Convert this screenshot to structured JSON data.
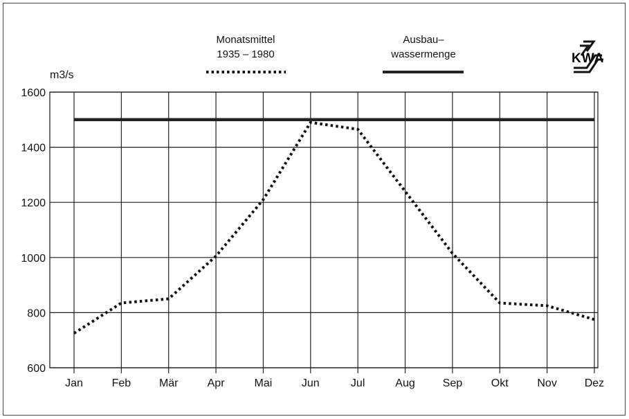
{
  "chart_data": {
    "type": "line",
    "ylabel": "m3/s",
    "categories": [
      "Jan",
      "Feb",
      "Mär",
      "Apr",
      "Mai",
      "Jun",
      "Jul",
      "Aug",
      "Sep",
      "Okt",
      "Nov",
      "Dez"
    ],
    "ylim": [
      600,
      1600
    ],
    "yticks": [
      600,
      800,
      1000,
      1200,
      1400,
      1600
    ],
    "grid": true,
    "legend_placement": "top",
    "series": [
      {
        "name": "Monatsmittel 1935 – 1980",
        "name_lines": [
          "Monatsmittel",
          "1935 – 1980"
        ],
        "style": "dotted",
        "color": "#111111",
        "values": [
          725,
          835,
          850,
          1005,
          1210,
          1490,
          1465,
          1240,
          1015,
          835,
          825,
          775
        ]
      },
      {
        "name": "Ausbau-wassermenge",
        "name_lines": [
          "Ausbau–",
          "wassermenge"
        ],
        "style": "solid",
        "color": "#222222",
        "values": [
          1500,
          1500,
          1500,
          1500,
          1500,
          1500,
          1500,
          1500,
          1500,
          1500,
          1500,
          1500
        ]
      }
    ]
  },
  "logo": {
    "text": "KWA",
    "icon": "kwa-logo-icon"
  }
}
